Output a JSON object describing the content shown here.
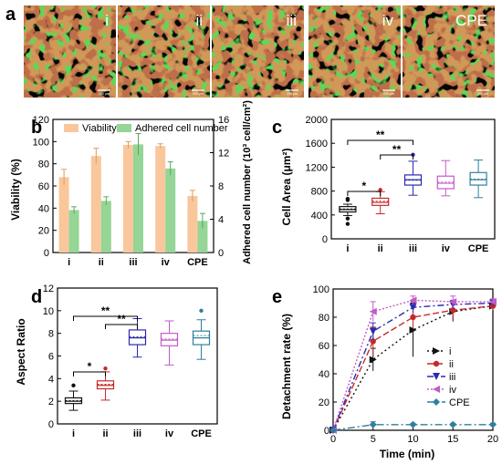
{
  "panel_letters": [
    "a",
    "b",
    "c",
    "d",
    "e"
  ],
  "micrographs": [
    {
      "label": "i",
      "scale_bar": "200 µm"
    },
    {
      "label": "ii",
      "scale_bar": "200 µm"
    },
    {
      "label": "iii",
      "scale_bar": "200 µm"
    },
    {
      "label": "iv",
      "scale_bar": "200 µm"
    },
    {
      "label": "CPE",
      "scale_bar": "200 µm"
    }
  ],
  "colors": {
    "viability": "#f9c79b",
    "adhered": "#95d596",
    "box_i": "#111111",
    "box_ii": "#c62a2a",
    "box_iii": "#2a2ab0",
    "box_iv": "#c35ac9",
    "box_cpe": "#2f7fa0",
    "green_cells": "#39d13a",
    "red_cells": "#d0502a"
  },
  "chart_data": [
    {
      "type": "bar",
      "panel": "b",
      "categories": [
        "i",
        "ii",
        "iii",
        "iv",
        "CPE"
      ],
      "series": [
        {
          "name": "Viability",
          "axis": "left",
          "values": [
            68,
            87,
            97,
            96,
            51
          ],
          "errors": [
            7,
            7,
            3,
            2,
            5
          ]
        },
        {
          "name": "Adhered cell number",
          "axis": "right",
          "values": [
            5.1,
            6.2,
            13.0,
            10.1,
            3.8
          ],
          "errors": [
            0.4,
            0.5,
            1.3,
            0.8,
            0.9
          ]
        }
      ],
      "ylabel": "Viability (%)",
      "ylabel_right": "Adhered cell number (10³ cell/cm²)",
      "ylim": [
        0,
        120
      ],
      "yticks": [
        0,
        20,
        40,
        60,
        80,
        100,
        120
      ],
      "ylim_right": [
        0,
        16
      ],
      "yticks_right": [
        0,
        4,
        8,
        12,
        16
      ],
      "legend": "top"
    },
    {
      "type": "box",
      "panel": "c",
      "categories": [
        "i",
        "ii",
        "iii",
        "iv",
        "CPE"
      ],
      "boxes": [
        {
          "min": 390,
          "q1": 450,
          "median": 490,
          "mean": 500,
          "q3": 540,
          "max": 580,
          "outliers": [
            250,
            340,
            650,
            670
          ]
        },
        {
          "min": 420,
          "q1": 560,
          "median": 610,
          "mean": 630,
          "q3": 680,
          "max": 790,
          "outliers": [
            820
          ]
        },
        {
          "min": 730,
          "q1": 900,
          "median": 990,
          "mean": 980,
          "q3": 1070,
          "max": 1300,
          "outliers": [
            1410
          ]
        },
        {
          "min": 720,
          "q1": 840,
          "median": 930,
          "mean": 950,
          "q3": 1050,
          "max": 1310,
          "outliers": []
        },
        {
          "min": 690,
          "q1": 900,
          "median": 990,
          "mean": 1000,
          "q3": 1110,
          "max": 1320,
          "outliers": []
        }
      ],
      "ylabel": "Cell Area (μm²)",
      "ylim": [
        0,
        2000
      ],
      "yticks": [
        0,
        400,
        800,
        1200,
        1600,
        2000
      ],
      "significance": [
        {
          "from": "i",
          "to": "ii",
          "label": "*"
        },
        {
          "from": "i",
          "to": "iii",
          "label": "**"
        },
        {
          "from": "ii",
          "to": "iii",
          "label": "**"
        }
      ]
    },
    {
      "type": "box",
      "panel": "d",
      "categories": [
        "i",
        "ii",
        "iii",
        "iv",
        "CPE"
      ],
      "boxes": [
        {
          "min": 1.2,
          "q1": 1.8,
          "median": 2.0,
          "mean": 2.05,
          "q3": 2.3,
          "max": 2.9,
          "outliers": [
            3.4
          ]
        },
        {
          "min": 2.1,
          "q1": 3.1,
          "median": 3.4,
          "mean": 3.5,
          "q3": 3.8,
          "max": 4.6,
          "outliers": [
            4.9
          ]
        },
        {
          "min": 5.9,
          "q1": 7.0,
          "median": 7.6,
          "mean": 7.7,
          "q3": 8.3,
          "max": 9.3,
          "outliers": []
        },
        {
          "min": 5.2,
          "q1": 6.9,
          "median": 7.4,
          "mean": 7.5,
          "q3": 8.0,
          "max": 9.1,
          "outliers": []
        },
        {
          "min": 5.7,
          "q1": 7.0,
          "median": 7.6,
          "mean": 7.8,
          "q3": 8.2,
          "max": 9.2,
          "outliers": [
            10.0
          ]
        }
      ],
      "ylabel": "Aspect Ratio",
      "ylim": [
        0,
        12
      ],
      "yticks": [
        0,
        2,
        4,
        6,
        8,
        10,
        12
      ],
      "significance": [
        {
          "from": "i",
          "to": "ii",
          "label": "*"
        },
        {
          "from": "i",
          "to": "iii",
          "label": "**"
        },
        {
          "from": "ii",
          "to": "iii",
          "label": "**"
        }
      ]
    },
    {
      "type": "line",
      "panel": "e",
      "x": [
        0,
        5,
        10,
        15,
        20
      ],
      "series": [
        {
          "name": "i",
          "values": [
            0,
            50,
            71,
            84,
            88
          ],
          "errors": [
            0,
            8,
            19,
            7,
            3
          ],
          "color": "#111111",
          "dash": "2,3",
          "marker": "tri-right"
        },
        {
          "name": "ii",
          "values": [
            0,
            63,
            80,
            85,
            88
          ],
          "errors": [
            0,
            10,
            8,
            6,
            3
          ],
          "color": "#c62a2a",
          "dash": "7,3",
          "marker": "circle"
        },
        {
          "name": "iii",
          "values": [
            0,
            70,
            87,
            89,
            90
          ],
          "errors": [
            0,
            6,
            4,
            3,
            2
          ],
          "color": "#2a2ab0",
          "dash": "7,3,2,3",
          "marker": "tri-down"
        },
        {
          "name": "iv",
          "values": [
            0,
            84,
            92,
            91,
            91
          ],
          "errors": [
            0,
            7,
            3,
            4,
            2
          ],
          "color": "#c35ac9",
          "dash": "2,2",
          "marker": "tri-left"
        },
        {
          "name": "CPE",
          "values": [
            0,
            4,
            4,
            4,
            4
          ],
          "errors": [
            0,
            2,
            1,
            1,
            1
          ],
          "color": "#2f7fa0",
          "dash": "8,3,2,3",
          "marker": "diamond"
        }
      ],
      "xlabel": "Time (min)",
      "ylabel": "Detachment rate (%)",
      "xlim": [
        0,
        20
      ],
      "xticks": [
        0,
        5,
        10,
        15,
        20
      ],
      "ylim": [
        0,
        100
      ],
      "yticks": [
        0,
        20,
        40,
        60,
        80,
        100
      ],
      "legend": "right"
    }
  ]
}
